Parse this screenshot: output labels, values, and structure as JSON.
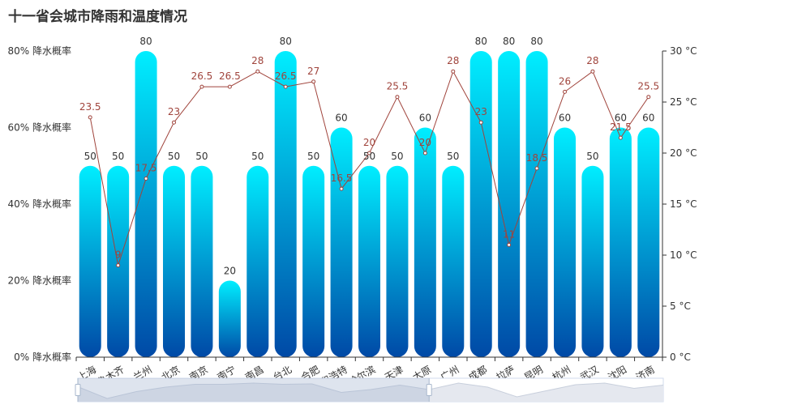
{
  "header": {
    "title": "十一省会城市降雨和温度情况"
  },
  "chart_data": {
    "type": "bar",
    "title": "十一省会城市降雨和温度情况",
    "categories": [
      "上海",
      "乌鲁木齐",
      "兰州",
      "北京",
      "南京",
      "南宁",
      "南昌",
      "台北",
      "合肥",
      "呼和浩特",
      "哈尔滨",
      "天津",
      "太原",
      "广州",
      "成都",
      "拉萨",
      "昆明",
      "杭州",
      "武汉",
      "沈阳",
      "济南"
    ],
    "series": [
      {
        "type": "bar",
        "values": [
          50,
          50,
          80,
          50,
          50,
          20,
          50,
          80,
          50,
          60,
          50,
          50,
          60,
          50,
          80,
          80,
          80,
          60,
          50,
          60,
          60
        ]
      },
      {
        "type": "line",
        "values": [
          23.5,
          9,
          17.5,
          23,
          26.5,
          26.5,
          28,
          26.5,
          27,
          16.5,
          20,
          25.5,
          20,
          28,
          23,
          11,
          18.5,
          26,
          28,
          21.5,
          25.5
        ]
      }
    ],
    "y_left": {
      "ticks": [
        "0% 降水概率",
        "20% 降水概率",
        "40% 降水概率",
        "60% 降水概率",
        "80% 降水概率"
      ],
      "ylim": [
        0,
        80
      ]
    },
    "y_right": {
      "ticks": [
        "0 °C",
        "5 °C",
        "10 °C",
        "15 °C",
        "20 °C",
        "25 °C",
        "30 °C"
      ],
      "ylim": [
        0,
        30
      ]
    },
    "data_zoom": {
      "start_fraction": 0,
      "end_fraction": 0.6
    },
    "bar_gradient": {
      "top": "#00eeff",
      "bottom": "#0049a6"
    },
    "line_color": "#a0443c",
    "axis_color": "#333333"
  }
}
